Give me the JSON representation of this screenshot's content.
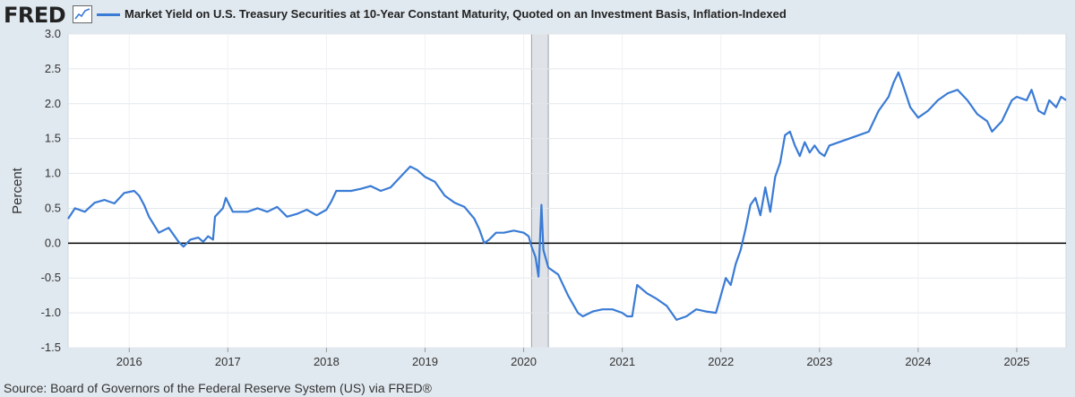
{
  "brand": {
    "logo_text": "FRED",
    "icon": "line-chart-icon"
  },
  "legend": {
    "series_label": "Market Yield on U.S. Treasury Securities at 10-Year Constant Maturity, Quoted on an Investment Basis, Inflation-Indexed",
    "color": "#3a7bd5"
  },
  "source_text": "Source: Board of Governors of the Federal Reserve System (US) via FRED®",
  "chart_data": {
    "type": "line",
    "ylabel": "Percent",
    "xlabel": "",
    "ylim": [
      -1.5,
      3.0
    ],
    "xlim": [
      2015.38,
      2025.5
    ],
    "y_ticks": [
      "3.0",
      "2.5",
      "2.0",
      "1.5",
      "1.0",
      "0.5",
      "0.0",
      "-0.5",
      "-1.0",
      "-1.5"
    ],
    "x_ticks": [
      "2016",
      "2017",
      "2018",
      "2019",
      "2020",
      "2021",
      "2022",
      "2023",
      "2024",
      "2025"
    ],
    "grid": true,
    "recession_shading": [
      [
        2020.08,
        2020.25
      ]
    ],
    "zero_line": 0,
    "series": [
      {
        "color": "#3a7bd5",
        "points": [
          [
            2015.38,
            0.35
          ],
          [
            2015.45,
            0.5
          ],
          [
            2015.55,
            0.45
          ],
          [
            2015.65,
            0.58
          ],
          [
            2015.75,
            0.62
          ],
          [
            2015.85,
            0.57
          ],
          [
            2015.95,
            0.72
          ],
          [
            2016.05,
            0.75
          ],
          [
            2016.1,
            0.68
          ],
          [
            2016.15,
            0.55
          ],
          [
            2016.2,
            0.38
          ],
          [
            2016.3,
            0.15
          ],
          [
            2016.4,
            0.22
          ],
          [
            2016.5,
            0.02
          ],
          [
            2016.55,
            -0.05
          ],
          [
            2016.62,
            0.05
          ],
          [
            2016.7,
            0.08
          ],
          [
            2016.75,
            0.02
          ],
          [
            2016.8,
            0.1
          ],
          [
            2016.85,
            0.05
          ],
          [
            2016.87,
            0.38
          ],
          [
            2016.95,
            0.5
          ],
          [
            2016.98,
            0.65
          ],
          [
            2017.05,
            0.45
          ],
          [
            2017.2,
            0.45
          ],
          [
            2017.3,
            0.5
          ],
          [
            2017.4,
            0.45
          ],
          [
            2017.5,
            0.52
          ],
          [
            2017.6,
            0.38
          ],
          [
            2017.7,
            0.42
          ],
          [
            2017.8,
            0.48
          ],
          [
            2017.9,
            0.4
          ],
          [
            2018.0,
            0.48
          ],
          [
            2018.05,
            0.6
          ],
          [
            2018.1,
            0.75
          ],
          [
            2018.25,
            0.75
          ],
          [
            2018.35,
            0.78
          ],
          [
            2018.45,
            0.82
          ],
          [
            2018.55,
            0.75
          ],
          [
            2018.65,
            0.8
          ],
          [
            2018.75,
            0.95
          ],
          [
            2018.85,
            1.1
          ],
          [
            2018.92,
            1.05
          ],
          [
            2019.0,
            0.95
          ],
          [
            2019.1,
            0.88
          ],
          [
            2019.2,
            0.68
          ],
          [
            2019.3,
            0.58
          ],
          [
            2019.4,
            0.52
          ],
          [
            2019.5,
            0.35
          ],
          [
            2019.55,
            0.2
          ],
          [
            2019.6,
            0.0
          ],
          [
            2019.65,
            0.05
          ],
          [
            2019.72,
            0.15
          ],
          [
            2019.8,
            0.15
          ],
          [
            2019.9,
            0.18
          ],
          [
            2020.0,
            0.15
          ],
          [
            2020.05,
            0.1
          ],
          [
            2020.08,
            -0.05
          ],
          [
            2020.12,
            -0.2
          ],
          [
            2020.15,
            -0.48
          ],
          [
            2020.18,
            0.55
          ],
          [
            2020.2,
            -0.1
          ],
          [
            2020.25,
            -0.35
          ],
          [
            2020.35,
            -0.45
          ],
          [
            2020.45,
            -0.75
          ],
          [
            2020.55,
            -1.0
          ],
          [
            2020.6,
            -1.05
          ],
          [
            2020.7,
            -0.98
          ],
          [
            2020.8,
            -0.95
          ],
          [
            2020.9,
            -0.95
          ],
          [
            2021.0,
            -1.0
          ],
          [
            2021.05,
            -1.05
          ],
          [
            2021.1,
            -1.05
          ],
          [
            2021.15,
            -0.6
          ],
          [
            2021.25,
            -0.72
          ],
          [
            2021.35,
            -0.8
          ],
          [
            2021.45,
            -0.9
          ],
          [
            2021.55,
            -1.1
          ],
          [
            2021.65,
            -1.05
          ],
          [
            2021.75,
            -0.95
          ],
          [
            2021.85,
            -0.98
          ],
          [
            2021.95,
            -1.0
          ],
          [
            2022.0,
            -0.75
          ],
          [
            2022.05,
            -0.5
          ],
          [
            2022.1,
            -0.6
          ],
          [
            2022.15,
            -0.3
          ],
          [
            2022.2,
            -0.1
          ],
          [
            2022.25,
            0.2
          ],
          [
            2022.3,
            0.55
          ],
          [
            2022.35,
            0.65
          ],
          [
            2022.4,
            0.4
          ],
          [
            2022.45,
            0.8
          ],
          [
            2022.5,
            0.45
          ],
          [
            2022.55,
            0.95
          ],
          [
            2022.6,
            1.15
          ],
          [
            2022.65,
            1.55
          ],
          [
            2022.7,
            1.6
          ],
          [
            2022.75,
            1.4
          ],
          [
            2022.8,
            1.25
          ],
          [
            2022.85,
            1.45
          ],
          [
            2022.9,
            1.3
          ],
          [
            2022.95,
            1.4
          ],
          [
            2023.0,
            1.3
          ],
          [
            2023.05,
            1.25
          ],
          [
            2023.1,
            1.4
          ],
          [
            2023.2,
            1.45
          ],
          [
            2023.3,
            1.5
          ],
          [
            2023.4,
            1.55
          ],
          [
            2023.5,
            1.6
          ],
          [
            2023.6,
            1.9
          ],
          [
            2023.7,
            2.1
          ],
          [
            2023.75,
            2.3
          ],
          [
            2023.8,
            2.45
          ],
          [
            2023.85,
            2.25
          ],
          [
            2023.92,
            1.95
          ],
          [
            2024.0,
            1.8
          ],
          [
            2024.1,
            1.9
          ],
          [
            2024.2,
            2.05
          ],
          [
            2024.3,
            2.15
          ],
          [
            2024.4,
            2.2
          ],
          [
            2024.5,
            2.05
          ],
          [
            2024.6,
            1.85
          ],
          [
            2024.7,
            1.75
          ],
          [
            2024.75,
            1.6
          ],
          [
            2024.85,
            1.75
          ],
          [
            2024.95,
            2.05
          ],
          [
            2025.0,
            2.1
          ],
          [
            2025.1,
            2.05
          ],
          [
            2025.15,
            2.2
          ],
          [
            2025.22,
            1.9
          ],
          [
            2025.28,
            1.85
          ],
          [
            2025.33,
            2.05
          ],
          [
            2025.4,
            1.95
          ],
          [
            2025.45,
            2.1
          ],
          [
            2025.5,
            2.05
          ]
        ]
      }
    ]
  }
}
